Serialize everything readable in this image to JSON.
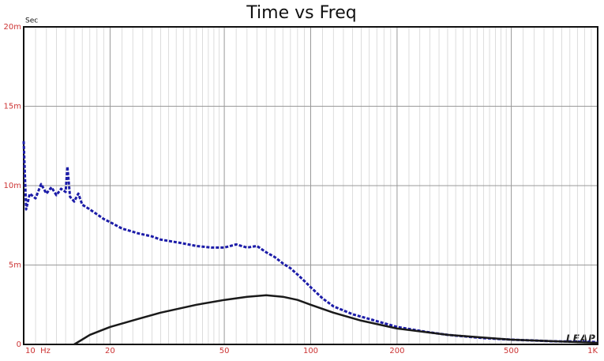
{
  "chart_data": {
    "type": "line",
    "title": "Time vs Freq",
    "ylabel": "Sec",
    "logo": "LEAP",
    "xscale": "log",
    "grid": true,
    "xlim": [
      10,
      1000
    ],
    "xticks": [
      {
        "value": 10,
        "label": "10  Hz"
      },
      20,
      50,
      100,
      200,
      500,
      {
        "value": 1000,
        "label": "1K"
      }
    ],
    "x_minor": [
      11,
      12,
      13,
      14,
      15,
      16,
      17,
      18,
      19,
      22,
      24,
      26,
      28,
      30,
      32,
      34,
      36,
      38,
      40,
      42,
      44,
      46,
      48,
      55,
      60,
      65,
      70,
      75,
      80,
      85,
      90,
      95,
      110,
      120,
      130,
      140,
      150,
      160,
      170,
      180,
      190,
      220,
      240,
      260,
      280,
      300,
      320,
      340,
      360,
      380,
      400,
      420,
      440,
      460,
      480,
      550,
      600,
      650,
      700,
      750,
      800,
      850,
      900,
      950
    ],
    "ylim": [
      0,
      0.02
    ],
    "yticks": [
      0,
      {
        "value": 0.005,
        "label": "5m"
      },
      {
        "value": 0.01,
        "label": "10m"
      },
      {
        "value": 0.015,
        "label": "15m"
      },
      {
        "value": 0.02,
        "label": "20m"
      }
    ],
    "series": [
      {
        "color": "#1c1ca8",
        "dashed": true,
        "x": [
          10,
          10.2,
          10.5,
          11,
          11.5,
          12,
          12.5,
          13,
          13.5,
          14,
          14.2,
          14.5,
          15,
          15.5,
          16,
          17,
          18,
          19,
          20,
          22,
          25,
          28,
          30,
          35,
          40,
          45,
          50,
          55,
          60,
          65,
          70,
          75,
          80,
          85,
          90,
          95,
          100,
          110,
          120,
          140,
          160,
          200,
          250,
          300,
          400,
          500,
          700,
          1000
        ],
        "values": [
          0.0128,
          0.0085,
          0.0095,
          0.0092,
          0.0101,
          0.0095,
          0.0099,
          0.0094,
          0.0098,
          0.0096,
          0.0112,
          0.0093,
          0.009,
          0.0095,
          0.0088,
          0.0085,
          0.0082,
          0.0079,
          0.0077,
          0.0073,
          0.007,
          0.0068,
          0.0066,
          0.0064,
          0.0062,
          0.0061,
          0.0061,
          0.0063,
          0.0061,
          0.0062,
          0.0058,
          0.0055,
          0.0051,
          0.0048,
          0.0044,
          0.004,
          0.0036,
          0.0029,
          0.0024,
          0.0019,
          0.0016,
          0.0011,
          0.0008,
          0.0006,
          0.0004,
          0.0003,
          0.0002,
          0.00015
        ]
      },
      {
        "color": "#1a1a1a",
        "dashed": false,
        "x": [
          15,
          17,
          20,
          25,
          30,
          40,
          50,
          60,
          70,
          80,
          90,
          100,
          120,
          150,
          200,
          300,
          500,
          1000
        ],
        "values": [
          0,
          0.0006,
          0.0011,
          0.0016,
          0.002,
          0.0025,
          0.0028,
          0.003,
          0.0031,
          0.003,
          0.0028,
          0.0025,
          0.002,
          0.0015,
          0.001,
          0.0006,
          0.0003,
          0.0001
        ]
      }
    ]
  }
}
